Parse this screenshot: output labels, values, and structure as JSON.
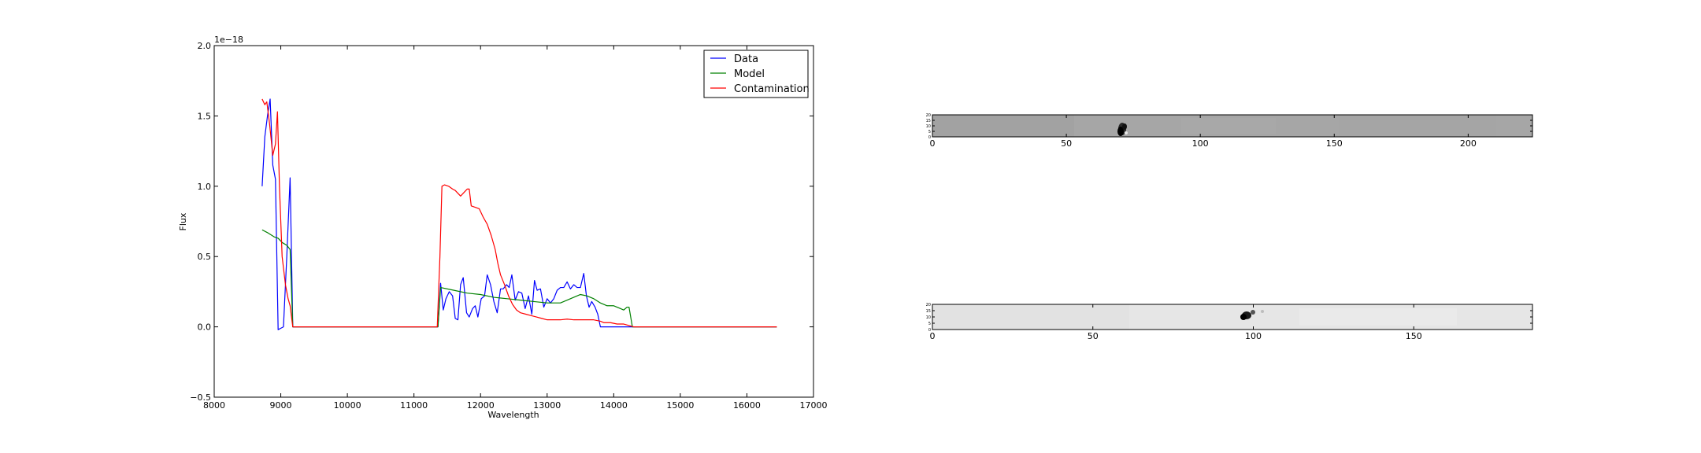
{
  "chart_data": [
    {
      "type": "line",
      "title": "",
      "xlabel": "Wavelength",
      "ylabel": "Flux",
      "offset_text": "1e−18",
      "xlim": [
        8000,
        17000
      ],
      "ylim": [
        -0.5,
        2.0
      ],
      "x_ticks": [
        8000,
        9000,
        10000,
        11000,
        12000,
        13000,
        14000,
        15000,
        16000,
        17000
      ],
      "y_ticks": [
        -0.5,
        0.0,
        0.5,
        1.0,
        1.5,
        2.0
      ],
      "y_tick_labels": [
        "−0.5",
        "0.0",
        "0.5",
        "1.0",
        "1.5",
        "2.0"
      ],
      "legend_position": "top-right",
      "series": [
        {
          "name": "Data",
          "color": "#0000ff",
          "points": [
            [
              8720,
              1.0
            ],
            [
              8760,
              1.35
            ],
            [
              8800,
              1.5
            ],
            [
              8840,
              1.62
            ],
            [
              8880,
              1.15
            ],
            [
              8920,
              1.05
            ],
            [
              8960,
              -0.02
            ],
            [
              9000,
              -0.01
            ],
            [
              9040,
              0.0
            ],
            [
              9090,
              0.5
            ],
            [
              9140,
              1.06
            ],
            [
              9180,
              0.0
            ],
            [
              9210,
              0.0
            ],
            [
              11360,
              0.0
            ],
            [
              11400,
              0.31
            ],
            [
              11440,
              0.12
            ],
            [
              11480,
              0.2
            ],
            [
              11530,
              0.25
            ],
            [
              11580,
              0.22
            ],
            [
              11620,
              0.06
            ],
            [
              11660,
              0.05
            ],
            [
              11700,
              0.3
            ],
            [
              11740,
              0.35
            ],
            [
              11790,
              0.1
            ],
            [
              11830,
              0.07
            ],
            [
              11880,
              0.13
            ],
            [
              11920,
              0.15
            ],
            [
              11960,
              0.07
            ],
            [
              12010,
              0.2
            ],
            [
              12060,
              0.22
            ],
            [
              12100,
              0.37
            ],
            [
              12150,
              0.3
            ],
            [
              12200,
              0.18
            ],
            [
              12250,
              0.1
            ],
            [
              12300,
              0.27
            ],
            [
              12340,
              0.27
            ],
            [
              12390,
              0.3
            ],
            [
              12430,
              0.28
            ],
            [
              12470,
              0.37
            ],
            [
              12520,
              0.19
            ],
            [
              12570,
              0.25
            ],
            [
              12620,
              0.24
            ],
            [
              12670,
              0.13
            ],
            [
              12720,
              0.22
            ],
            [
              12770,
              0.09
            ],
            [
              12810,
              0.33
            ],
            [
              12850,
              0.26
            ],
            [
              12900,
              0.27
            ],
            [
              12950,
              0.14
            ],
            [
              13000,
              0.2
            ],
            [
              13050,
              0.17
            ],
            [
              13100,
              0.2
            ],
            [
              13150,
              0.26
            ],
            [
              13200,
              0.28
            ],
            [
              13250,
              0.28
            ],
            [
              13300,
              0.32
            ],
            [
              13350,
              0.27
            ],
            [
              13400,
              0.3
            ],
            [
              13450,
              0.28
            ],
            [
              13500,
              0.28
            ],
            [
              13550,
              0.38
            ],
            [
              13590,
              0.22
            ],
            [
              13630,
              0.14
            ],
            [
              13670,
              0.18
            ],
            [
              13720,
              0.14
            ],
            [
              13760,
              0.09
            ],
            [
              13800,
              0.0
            ],
            [
              13900,
              0.0
            ],
            [
              14000,
              0.0
            ],
            [
              14100,
              0.0
            ],
            [
              14200,
              0.0
            ],
            [
              16450,
              0.0
            ]
          ]
        },
        {
          "name": "Model",
          "color": "#008000",
          "points": [
            [
              8720,
              0.69
            ],
            [
              8800,
              0.67
            ],
            [
              8900,
              0.64
            ],
            [
              8960,
              0.63
            ],
            [
              9020,
              0.6
            ],
            [
              9090,
              0.58
            ],
            [
              9140,
              0.55
            ],
            [
              9180,
              0.0
            ],
            [
              9210,
              0.0
            ],
            [
              11360,
              0.0
            ],
            [
              11400,
              0.28
            ],
            [
              11600,
              0.26
            ],
            [
              11800,
              0.24
            ],
            [
              12000,
              0.23
            ],
            [
              12200,
              0.21
            ],
            [
              12400,
              0.2
            ],
            [
              12600,
              0.19
            ],
            [
              12800,
              0.18
            ],
            [
              13000,
              0.17
            ],
            [
              13200,
              0.17
            ],
            [
              13350,
              0.2
            ],
            [
              13500,
              0.23
            ],
            [
              13600,
              0.22
            ],
            [
              13700,
              0.2
            ],
            [
              13800,
              0.17
            ],
            [
              13900,
              0.15
            ],
            [
              14000,
              0.15
            ],
            [
              14050,
              0.14
            ],
            [
              14100,
              0.13
            ],
            [
              14150,
              0.12
            ],
            [
              14200,
              0.14
            ],
            [
              14230,
              0.14
            ],
            [
              14280,
              0.0
            ],
            [
              16450,
              0.0
            ]
          ]
        },
        {
          "name": "Contamination",
          "color": "#ff0000",
          "points": [
            [
              8720,
              1.62
            ],
            [
              8760,
              1.58
            ],
            [
              8790,
              1.6
            ],
            [
              8830,
              1.45
            ],
            [
              8880,
              1.22
            ],
            [
              8920,
              1.3
            ],
            [
              8950,
              1.53
            ],
            [
              8980,
              1.0
            ],
            [
              9020,
              0.5
            ],
            [
              9070,
              0.3
            ],
            [
              9110,
              0.2
            ],
            [
              9140,
              0.15
            ],
            [
              9180,
              0.0
            ],
            [
              9210,
              0.0
            ],
            [
              11350,
              0.0
            ],
            [
              11390,
              0.5
            ],
            [
              11420,
              1.0
            ],
            [
              11460,
              1.01
            ],
            [
              11520,
              1.0
            ],
            [
              11580,
              0.98
            ],
            [
              11620,
              0.97
            ],
            [
              11700,
              0.93
            ],
            [
              11760,
              0.96
            ],
            [
              11800,
              0.98
            ],
            [
              11830,
              0.98
            ],
            [
              11860,
              0.86
            ],
            [
              11920,
              0.85
            ],
            [
              11980,
              0.84
            ],
            [
              12040,
              0.78
            ],
            [
              12100,
              0.73
            ],
            [
              12160,
              0.65
            ],
            [
              12220,
              0.55
            ],
            [
              12260,
              0.45
            ],
            [
              12300,
              0.37
            ],
            [
              12360,
              0.3
            ],
            [
              12420,
              0.22
            ],
            [
              12480,
              0.16
            ],
            [
              12540,
              0.12
            ],
            [
              12600,
              0.1
            ],
            [
              12680,
              0.09
            ],
            [
              12760,
              0.08
            ],
            [
              12840,
              0.07
            ],
            [
              12920,
              0.06
            ],
            [
              13000,
              0.05
            ],
            [
              13100,
              0.05
            ],
            [
              13200,
              0.05
            ],
            [
              13300,
              0.055
            ],
            [
              13400,
              0.05
            ],
            [
              13500,
              0.05
            ],
            [
              13600,
              0.05
            ],
            [
              13700,
              0.05
            ],
            [
              13800,
              0.04
            ],
            [
              13850,
              0.03
            ],
            [
              13950,
              0.03
            ],
            [
              14050,
              0.02
            ],
            [
              14150,
              0.02
            ],
            [
              14300,
              0.0
            ],
            [
              16450,
              0.0
            ]
          ]
        }
      ]
    },
    {
      "type": "heatmap",
      "xlim": [
        0,
        224
      ],
      "x_ticks": [
        0,
        50,
        100,
        150,
        200
      ],
      "background": "#a6a6a6",
      "y_tick_labels": [
        "0",
        "5",
        "10",
        "15",
        "20"
      ]
    },
    {
      "type": "heatmap",
      "xlim": [
        0,
        187
      ],
      "x_ticks": [
        0,
        50,
        100,
        150
      ],
      "background": "#e6e6e6",
      "y_tick_labels": [
        "0",
        "5",
        "10",
        "15",
        "20"
      ]
    }
  ]
}
